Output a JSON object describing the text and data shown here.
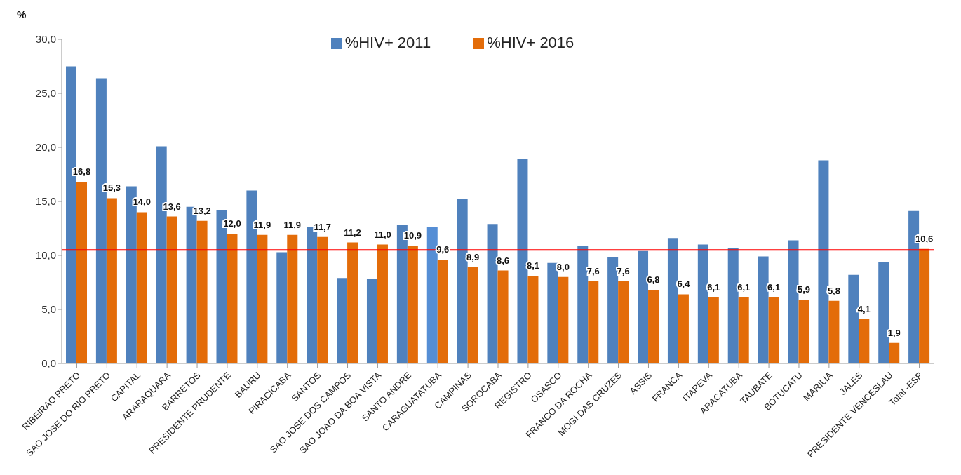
{
  "chart_data": {
    "type": "bar",
    "ylabel": "%",
    "categories": [
      "RIBEIRAO PRETO",
      "SAO JOSE DO RIO PRETO",
      "CAPITAL",
      "ARARAQUARA",
      "BARRETOS",
      "PRESIDENTE PRUDENTE",
      "BAURU",
      "PIRACICABA",
      "SANTOS",
      "SAO JOSE DOS CAMPOS",
      "SAO JOAO DA BOA VISTA",
      "SANTO ANDRE",
      "CARAGUATATUBA",
      "CAMPINAS",
      "SOROCABA",
      "REGISTRO",
      "OSASCO",
      "FRANCO DA ROCHA",
      "MOGI DAS CRUZES",
      "ASSIS",
      "FRANCA",
      "ITAPEVA",
      "ARACATUBA",
      "TAUBATE",
      "BOTUCATU",
      "MARILIA",
      "JALES",
      "PRESIDENTE VENCESLAU",
      "Total -ESP"
    ],
    "series": [
      {
        "name": "%HIV+ 2011",
        "color": "#4f81bd",
        "colors": [
          "#4f81bd",
          "#4f81bd",
          "#4f81bd",
          "#4f81bd",
          "#4f81bd",
          "#4f81bd",
          "#4f81bd",
          "#4f81bd",
          "#4f81bd",
          "#4f81bd",
          "#4f81bd",
          "#4f81bd",
          "#558ed5",
          "#4f81bd",
          "#4f81bd",
          "#4f81bd",
          "#4f81bd",
          "#4f81bd",
          "#4f81bd",
          "#4f81bd",
          "#4f81bd",
          "#4f81bd",
          "#4f81bd",
          "#4f81bd",
          "#4f81bd",
          "#4f81bd",
          "#4f81bd",
          "#4f81bd",
          "#4f81bd"
        ],
        "values": [
          27.5,
          26.4,
          16.4,
          20.1,
          14.5,
          14.2,
          16.0,
          10.3,
          12.6,
          7.9,
          7.8,
          12.8,
          12.6,
          15.2,
          12.9,
          18.9,
          9.3,
          10.9,
          9.8,
          10.4,
          11.6,
          11.0,
          10.7,
          9.9,
          11.4,
          18.8,
          8.2,
          9.4,
          14.1
        ]
      },
      {
        "name": "%HIV+ 2016",
        "color": "#e36c09",
        "values": [
          16.8,
          15.3,
          14.0,
          13.6,
          13.2,
          12.0,
          11.9,
          11.9,
          11.7,
          11.2,
          11.0,
          10.9,
          9.6,
          8.9,
          8.6,
          8.1,
          8.0,
          7.6,
          7.6,
          6.8,
          6.4,
          6.1,
          6.1,
          6.1,
          5.9,
          5.8,
          4.1,
          1.9,
          10.6
        ],
        "value_labels": [
          "16,8",
          "15,3",
          "14,0",
          "13,6",
          "13,2",
          "12,0",
          "11,9",
          "11,9",
          "11,7",
          "11,2",
          "11,0",
          "10,9",
          "9,6",
          "8,9",
          "8,6",
          "8,1",
          "8,0",
          "7,6",
          "7,6",
          "6,8",
          "6,4",
          "6,1",
          "6,1",
          "6,1",
          "5,9",
          "5,8",
          "4,1",
          "1,9",
          "10,6"
        ]
      }
    ],
    "ylim": [
      0,
      30
    ],
    "yticks": [
      {
        "value": 0,
        "label": "0,0"
      },
      {
        "value": 5,
        "label": "5,0"
      },
      {
        "value": 10,
        "label": "10,0"
      },
      {
        "value": 15,
        "label": "15,0"
      },
      {
        "value": 20,
        "label": "20,0"
      },
      {
        "value": 25,
        "label": "25,0"
      },
      {
        "value": 30,
        "label": "30,0"
      }
    ],
    "ref_lines": [
      {
        "axis": "y",
        "value": 10.5,
        "color": "#ff0000",
        "line_style": "solid"
      }
    ],
    "grid": false,
    "legend": "top"
  }
}
